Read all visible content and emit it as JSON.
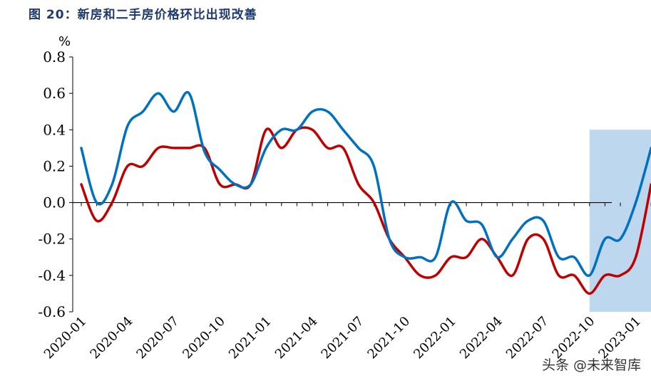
{
  "title": "图 20：新房和二手房价格环比出现改善",
  "watermark": "头条 @未来智库",
  "chart_data": {
    "type": "line",
    "title": "图 20：新房和二手房价格环比出现改善",
    "xlabel": "",
    "ylabel": "%",
    "ylim": [
      -0.6,
      0.8
    ],
    "yticks": [
      -0.6,
      -0.4,
      -0.2,
      0.0,
      0.2,
      0.4,
      0.6,
      0.8
    ],
    "ytick_labels": [
      "-0.6",
      "-0.4",
      "-0.2",
      "0.0",
      "0.2",
      "0.4",
      "0.6",
      "0.8"
    ],
    "x_tick_labels": [
      "2020-01",
      "2020-04",
      "2020-07",
      "2020-10",
      "2021-01",
      "2021-04",
      "2021-07",
      "2021-10",
      "2022-01",
      "2022-04",
      "2022-07",
      "2022-10",
      "2023-01"
    ],
    "x_months": [
      "2020-01",
      "2020-02",
      "2020-03",
      "2020-04",
      "2020-05",
      "2020-06",
      "2020-07",
      "2020-08",
      "2020-09",
      "2020-10",
      "2020-11",
      "2020-12",
      "2021-01",
      "2021-02",
      "2021-03",
      "2021-04",
      "2021-05",
      "2021-06",
      "2021-07",
      "2021-08",
      "2021-09",
      "2021-10",
      "2021-11",
      "2021-12",
      "2022-01",
      "2022-02",
      "2022-03",
      "2022-04",
      "2022-05",
      "2022-06",
      "2022-07",
      "2022-08",
      "2022-09",
      "2022-10",
      "2022-11",
      "2022-12",
      "2023-01",
      "2023-02"
    ],
    "highlight": {
      "x_start": "2022-10",
      "x_end": "2023-02",
      "color": "#bdd7ee"
    },
    "grid": false,
    "legend": "none",
    "series": [
      {
        "color": "#0070c0",
        "values": [
          0.3,
          0.0,
          0.1,
          0.42,
          0.5,
          0.6,
          0.5,
          0.6,
          0.28,
          0.18,
          0.1,
          0.1,
          0.3,
          0.4,
          0.4,
          0.5,
          0.5,
          0.4,
          0.3,
          0.2,
          -0.2,
          -0.3,
          -0.3,
          -0.3,
          0.0,
          -0.1,
          -0.12,
          -0.3,
          -0.2,
          -0.1,
          -0.1,
          -0.3,
          -0.3,
          -0.4,
          -0.2,
          -0.2,
          0.0,
          0.3
        ]
      },
      {
        "color": "#c00000",
        "values": [
          0.1,
          -0.1,
          0.0,
          0.2,
          0.2,
          0.3,
          0.3,
          0.3,
          0.3,
          0.1,
          0.1,
          0.1,
          0.4,
          0.3,
          0.4,
          0.4,
          0.3,
          0.3,
          0.1,
          0.0,
          -0.2,
          -0.3,
          -0.4,
          -0.4,
          -0.3,
          -0.3,
          -0.2,
          -0.3,
          -0.4,
          -0.2,
          -0.2,
          -0.4,
          -0.4,
          -0.5,
          -0.4,
          -0.4,
          -0.3,
          0.1
        ]
      }
    ]
  }
}
